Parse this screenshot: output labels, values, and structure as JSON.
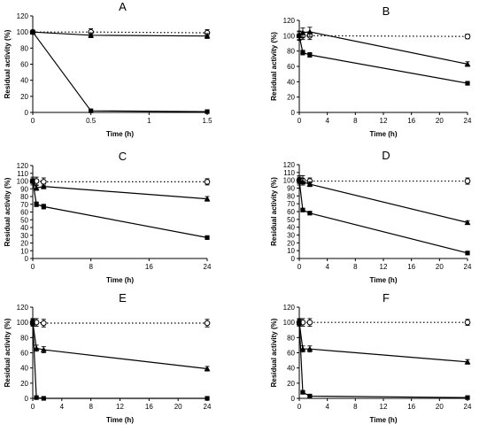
{
  "chart_data": [
    {
      "type": "line",
      "label": "A",
      "xlabel": "Time (h)",
      "ylabel": "Residual activity (%)",
      "xlim": [
        0,
        1.5
      ],
      "ylim": [
        0,
        120
      ],
      "xticks": [
        "0",
        "0.5",
        "1",
        "1.5"
      ],
      "yticks": [
        "0",
        "20",
        "40",
        "60",
        "80",
        "100",
        "120"
      ],
      "series": [
        {
          "marker": "open-circle",
          "style": "dotted",
          "x": [
            0,
            0.5,
            1.5
          ],
          "y": [
            100,
            100,
            99
          ],
          "err": [
            2,
            4,
            4
          ]
        },
        {
          "marker": "filled-triangle",
          "style": "solid",
          "x": [
            0,
            0.5,
            1.5
          ],
          "y": [
            100,
            96,
            95
          ],
          "err": [
            2,
            3,
            3
          ]
        },
        {
          "marker": "filled-square",
          "style": "solid",
          "x": [
            0,
            0.5,
            1.5
          ],
          "y": [
            100,
            2,
            1
          ],
          "err": [
            2,
            0.5,
            0.5
          ]
        }
      ]
    },
    {
      "type": "line",
      "label": "B",
      "xlabel": "Time (h)",
      "ylabel": "Residual activity (%)",
      "xlim": [
        0,
        24
      ],
      "ylim": [
        0,
        120
      ],
      "xticks": [
        "0",
        "4",
        "8",
        "12",
        "16",
        "20",
        "24"
      ],
      "yticks": [
        "0",
        "20",
        "40",
        "60",
        "80",
        "100",
        "120"
      ],
      "series": [
        {
          "marker": "open-circle",
          "style": "dotted",
          "x": [
            0,
            0.5,
            1.5,
            24
          ],
          "y": [
            100,
            100,
            100,
            99
          ],
          "err": [
            5,
            5,
            5,
            3
          ]
        },
        {
          "marker": "filled-triangle",
          "style": "solid",
          "x": [
            0,
            0.5,
            1.5,
            24
          ],
          "y": [
            100,
            104,
            105,
            63
          ],
          "err": [
            6,
            6,
            6,
            3
          ]
        },
        {
          "marker": "filled-square",
          "style": "solid",
          "x": [
            0,
            0.5,
            1.5,
            24
          ],
          "y": [
            100,
            78,
            75,
            38
          ],
          "err": [
            6,
            3,
            3,
            2
          ]
        }
      ]
    },
    {
      "type": "line",
      "label": "C",
      "xlabel": "Time (h)",
      "ylabel": "Residual activity (%)",
      "xlim": [
        0,
        24
      ],
      "ylim": [
        0,
        120
      ],
      "xticks": [
        "0",
        "8",
        "16",
        "24"
      ],
      "yticks": [
        "0",
        "10",
        "20",
        "30",
        "40",
        "50",
        "60",
        "70",
        "80",
        "90",
        "100",
        "110",
        "120"
      ],
      "series": [
        {
          "marker": "open-circle",
          "style": "dotted",
          "x": [
            0,
            0.5,
            1.5,
            24
          ],
          "y": [
            100,
            100,
            99,
            99
          ],
          "err": [
            5,
            5,
            5,
            4
          ]
        },
        {
          "marker": "filled-triangle",
          "style": "solid",
          "x": [
            0,
            0.5,
            1.5,
            24
          ],
          "y": [
            100,
            91,
            93,
            77
          ],
          "err": [
            3,
            3,
            3,
            3
          ]
        },
        {
          "marker": "filled-square",
          "style": "solid",
          "x": [
            0,
            0.5,
            1.5,
            24
          ],
          "y": [
            100,
            70,
            67,
            27
          ],
          "err": [
            3,
            3,
            3,
            1.5
          ]
        }
      ]
    },
    {
      "type": "line",
      "label": "D",
      "xlabel": "Time (h)",
      "ylabel": "Residual activity (%)",
      "xlim": [
        0,
        24
      ],
      "ylim": [
        0,
        120
      ],
      "xticks": [
        "0",
        "4",
        "8",
        "12",
        "16",
        "20",
        "24"
      ],
      "yticks": [
        "0",
        "10",
        "20",
        "30",
        "40",
        "50",
        "60",
        "70",
        "80",
        "90",
        "100",
        "110",
        "120"
      ],
      "series": [
        {
          "marker": "open-circle",
          "style": "dotted",
          "x": [
            0,
            0.5,
            1.5,
            24
          ],
          "y": [
            100,
            100,
            99,
            99
          ],
          "err": [
            6,
            6,
            4,
            4
          ]
        },
        {
          "marker": "filled-triangle",
          "style": "solid",
          "x": [
            0,
            0.5,
            1.5,
            24
          ],
          "y": [
            100,
            98,
            95,
            46
          ],
          "err": [
            4,
            4,
            3,
            2
          ]
        },
        {
          "marker": "filled-square",
          "style": "solid",
          "x": [
            0,
            0.5,
            1.5,
            24
          ],
          "y": [
            100,
            62,
            58,
            7
          ],
          "err": [
            4,
            2,
            2,
            1
          ]
        }
      ]
    },
    {
      "type": "line",
      "label": "E",
      "xlabel": "Time (h)",
      "ylabel": "Residual activity (%)",
      "xlim": [
        0,
        24
      ],
      "ylim": [
        0,
        120
      ],
      "xticks": [
        "0",
        "4",
        "8",
        "12",
        "16",
        "20",
        "24"
      ],
      "yticks": [
        "0",
        "20",
        "40",
        "60",
        "80",
        "100",
        "120"
      ],
      "series": [
        {
          "marker": "open-circle",
          "style": "dotted",
          "x": [
            0,
            0.5,
            1.5,
            24
          ],
          "y": [
            100,
            100,
            99,
            99
          ],
          "err": [
            5,
            5,
            5,
            5
          ]
        },
        {
          "marker": "filled-triangle",
          "style": "solid",
          "x": [
            0,
            0.5,
            1.5,
            24
          ],
          "y": [
            100,
            66,
            64,
            39
          ],
          "err": [
            4,
            4,
            4,
            3
          ]
        },
        {
          "marker": "filled-square",
          "style": "solid",
          "x": [
            0,
            0.5,
            1.5,
            24
          ],
          "y": [
            100,
            1,
            0,
            0
          ],
          "err": [
            4,
            0.5,
            0.5,
            0.5
          ]
        }
      ]
    },
    {
      "type": "line",
      "label": "F",
      "xlabel": "Time (h)",
      "ylabel": "Residual activity (%)",
      "xlim": [
        0,
        24
      ],
      "ylim": [
        0,
        120
      ],
      "xticks": [
        "0",
        "4",
        "8",
        "12",
        "16",
        "20",
        "24"
      ],
      "yticks": [
        "0",
        "20",
        "40",
        "60",
        "80",
        "100",
        "120"
      ],
      "series": [
        {
          "marker": "open-circle",
          "style": "dotted",
          "x": [
            0,
            0.5,
            1.5,
            24
          ],
          "y": [
            100,
            100,
            100,
            100
          ],
          "err": [
            5,
            5,
            5,
            4
          ]
        },
        {
          "marker": "filled-triangle",
          "style": "solid",
          "x": [
            0,
            0.5,
            1.5,
            24
          ],
          "y": [
            100,
            65,
            65,
            48
          ],
          "err": [
            4,
            4,
            4,
            3
          ]
        },
        {
          "marker": "filled-square",
          "style": "solid",
          "x": [
            0,
            0.5,
            1.5,
            24
          ],
          "y": [
            100,
            8,
            3,
            1
          ],
          "err": [
            4,
            1,
            1,
            0.5
          ]
        }
      ]
    }
  ]
}
